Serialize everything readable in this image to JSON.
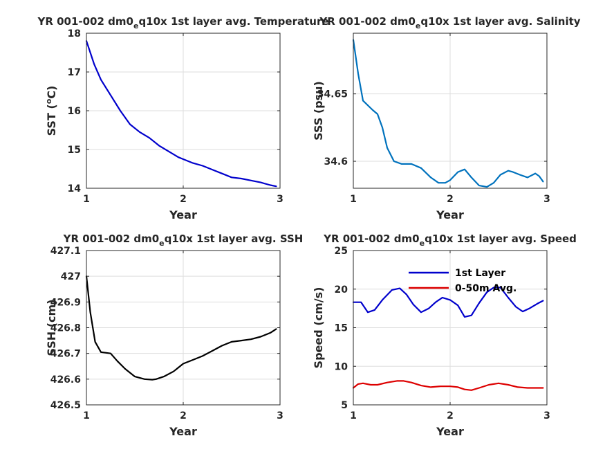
{
  "chart_data": [
    {
      "type": "line",
      "title_main": "YR 001-002 dm0",
      "title_sub": "e",
      "title_rest": "q10x 1st layer avg. Temperature",
      "xlabel": "Year",
      "ylabel_pre": "SST (",
      "ylabel_sup": "o",
      "ylabel_post": "C)",
      "xlim": [
        1,
        3
      ],
      "ylim": [
        14,
        18
      ],
      "xticks": [
        "1",
        "2",
        "3"
      ],
      "xtick_values": [
        1,
        2,
        3
      ],
      "yticks": [
        "14",
        "15",
        "16",
        "17",
        "18"
      ],
      "ytick_values": [
        14,
        15,
        16,
        17,
        18
      ],
      "grid": true,
      "series": [
        {
          "color": "#0000cc",
          "x": [
            1.0,
            1.04,
            1.08,
            1.15,
            1.25,
            1.35,
            1.45,
            1.55,
            1.65,
            1.75,
            1.85,
            1.95,
            2.0,
            2.1,
            2.2,
            2.3,
            2.4,
            2.5,
            2.6,
            2.7,
            2.8,
            2.9,
            2.96
          ],
          "y": [
            17.8,
            17.5,
            17.2,
            16.8,
            16.4,
            16.0,
            15.65,
            15.45,
            15.3,
            15.1,
            14.95,
            14.8,
            14.75,
            14.65,
            14.58,
            14.48,
            14.38,
            14.28,
            14.25,
            14.2,
            14.15,
            14.08,
            14.05
          ]
        }
      ]
    },
    {
      "type": "line",
      "title_main": "YR 001-002 dm0",
      "title_sub": "e",
      "title_rest": "q10x 1st layer avg. Salinity",
      "xlabel": "Year",
      "ylabel": "SSS (psu)",
      "xlim": [
        1,
        3
      ],
      "ylim": [
        34.58,
        34.695
      ],
      "xticks": [
        "1",
        "2",
        "3"
      ],
      "xtick_values": [
        1,
        2,
        3
      ],
      "yticks": [
        "34.6",
        "34.65"
      ],
      "ytick_values": [
        34.6,
        34.65
      ],
      "grid": true,
      "series": [
        {
          "color": "#0072bd",
          "x": [
            1.0,
            1.05,
            1.1,
            1.2,
            1.25,
            1.3,
            1.35,
            1.42,
            1.5,
            1.6,
            1.7,
            1.8,
            1.88,
            1.95,
            2.0,
            2.08,
            2.15,
            2.22,
            2.3,
            2.38,
            2.45,
            2.52,
            2.6,
            2.65,
            2.72,
            2.8,
            2.88,
            2.92,
            2.96
          ],
          "y": [
            34.69,
            34.665,
            34.645,
            34.638,
            34.635,
            34.625,
            34.61,
            34.6,
            34.598,
            34.598,
            34.595,
            34.588,
            34.584,
            34.584,
            34.586,
            34.592,
            34.594,
            34.588,
            34.582,
            34.581,
            34.584,
            34.59,
            34.593,
            34.592,
            34.59,
            34.588,
            34.591,
            34.589,
            34.585
          ]
        }
      ]
    },
    {
      "type": "line",
      "title_main": "YR 001-002 dm0",
      "title_sub": "e",
      "title_rest": "q10x 1st layer avg. SSH",
      "xlabel": "Year",
      "ylabel": "SSH (cm)",
      "xlim": [
        1,
        3
      ],
      "ylim": [
        426.5,
        427.1
      ],
      "xticks": [
        "1",
        "2",
        "3"
      ],
      "xtick_values": [
        1,
        2,
        3
      ],
      "yticks": [
        "426.5",
        "426.6",
        "426.7",
        "426.8",
        "426.9",
        "427",
        "427.1"
      ],
      "ytick_values": [
        426.5,
        426.6,
        426.7,
        426.8,
        426.9,
        427.0,
        427.1
      ],
      "grid": true,
      "series": [
        {
          "color": "#000000",
          "x": [
            1.0,
            1.04,
            1.09,
            1.15,
            1.25,
            1.32,
            1.4,
            1.5,
            1.6,
            1.68,
            1.72,
            1.8,
            1.9,
            2.0,
            2.1,
            2.2,
            2.3,
            2.4,
            2.5,
            2.6,
            2.7,
            2.8,
            2.9,
            2.96
          ],
          "y": [
            427.0,
            426.86,
            426.745,
            426.705,
            426.7,
            426.67,
            426.64,
            426.61,
            426.6,
            426.598,
            426.6,
            426.61,
            426.63,
            426.66,
            426.675,
            426.69,
            426.71,
            426.73,
            426.745,
            426.75,
            426.755,
            426.765,
            426.78,
            426.795
          ]
        }
      ]
    },
    {
      "type": "line",
      "title_main": "YR 001-002 dm0",
      "title_sub": "e",
      "title_rest": "q10x 1st layer avg. Speed",
      "xlabel": "Year",
      "ylabel": "Speed (cm/s)",
      "xlim": [
        1,
        3
      ],
      "ylim": [
        5,
        25
      ],
      "xticks": [
        "1",
        "2",
        "3"
      ],
      "xtick_values": [
        1,
        2,
        3
      ],
      "yticks": [
        "5",
        "10",
        "15",
        "20",
        "25"
      ],
      "ytick_values": [
        5,
        10,
        15,
        20,
        25
      ],
      "grid": true,
      "legend": "top-center",
      "series": [
        {
          "name": "1st Layer",
          "color": "#0000cc",
          "x": [
            1.0,
            1.08,
            1.15,
            1.22,
            1.3,
            1.4,
            1.48,
            1.55,
            1.62,
            1.7,
            1.78,
            1.85,
            1.92,
            2.0,
            2.08,
            2.15,
            2.22,
            2.3,
            2.38,
            2.45,
            2.52,
            2.6,
            2.68,
            2.75,
            2.82,
            2.9,
            2.96
          ],
          "y": [
            18.3,
            18.3,
            17.0,
            17.3,
            18.6,
            19.9,
            20.1,
            19.3,
            18.0,
            17.0,
            17.5,
            18.3,
            18.9,
            18.6,
            17.9,
            16.4,
            16.6,
            18.2,
            19.6,
            20.2,
            20.2,
            18.9,
            17.7,
            17.1,
            17.5,
            18.1,
            18.5
          ]
        },
        {
          "name": "0-50m Avg.",
          "color": "#dd0000",
          "x": [
            1.0,
            1.05,
            1.1,
            1.18,
            1.25,
            1.35,
            1.45,
            1.52,
            1.6,
            1.7,
            1.8,
            1.9,
            2.0,
            2.08,
            2.15,
            2.22,
            2.3,
            2.4,
            2.5,
            2.6,
            2.7,
            2.8,
            2.9,
            2.96
          ],
          "y": [
            7.2,
            7.7,
            7.8,
            7.6,
            7.6,
            7.9,
            8.1,
            8.1,
            7.9,
            7.5,
            7.3,
            7.4,
            7.4,
            7.3,
            7.0,
            6.9,
            7.2,
            7.6,
            7.8,
            7.6,
            7.3,
            7.2,
            7.2,
            7.2
          ]
        }
      ]
    }
  ]
}
